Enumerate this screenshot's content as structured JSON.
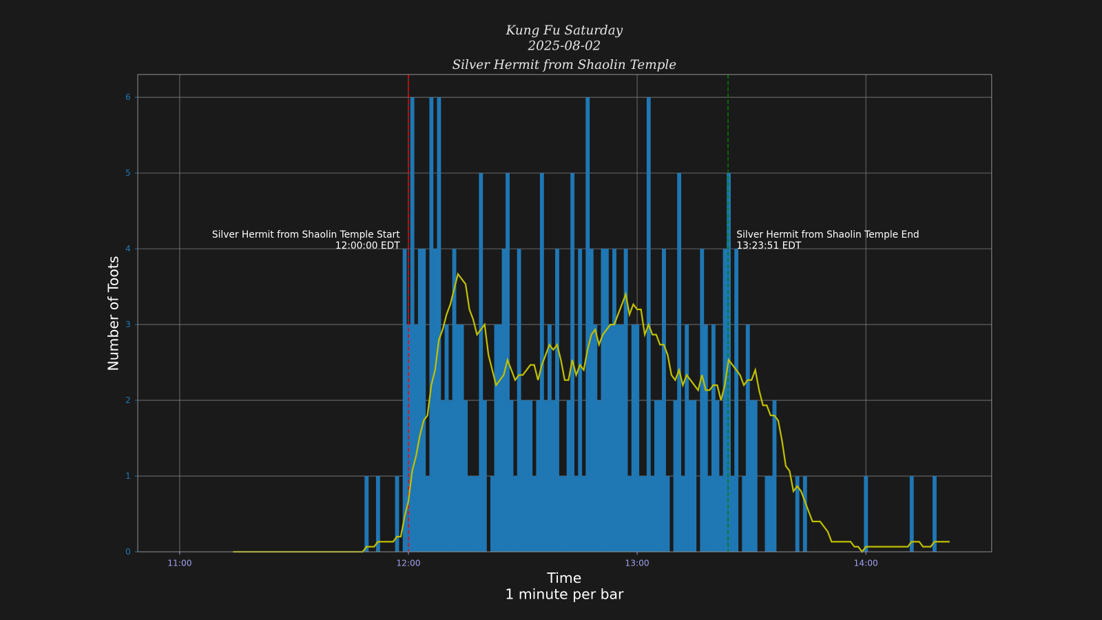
{
  "chart_data": {
    "type": "bar",
    "title_lines": [
      "Kung Fu Saturday",
      "2025-08-02",
      "Silver Hermit from Shaolin Temple"
    ],
    "xlabel": "Time",
    "xlabel_sub": "1 minute per bar",
    "ylabel": "Number of Toots",
    "xlim": [
      "10:49",
      "14:33"
    ],
    "ylim": [
      0,
      6.3
    ],
    "x_ticks": [
      "11:00",
      "12:00",
      "13:00",
      "14:00"
    ],
    "y_ticks": [
      0,
      1,
      2,
      3,
      4,
      5,
      6
    ],
    "grid": true,
    "bar_interval_minutes": 1,
    "bars": [
      [
        "11:49",
        1
      ],
      [
        "11:52",
        1
      ],
      [
        "11:57",
        1
      ],
      [
        "11:59",
        4
      ],
      [
        "12:00",
        3
      ],
      [
        "12:01",
        6
      ],
      [
        "12:02",
        3
      ],
      [
        "12:03",
        4
      ],
      [
        "12:04",
        4
      ],
      [
        "12:05",
        1
      ],
      [
        "12:06",
        6
      ],
      [
        "12:07",
        4
      ],
      [
        "12:08",
        6
      ],
      [
        "12:09",
        2
      ],
      [
        "12:10",
        3
      ],
      [
        "12:11",
        2
      ],
      [
        "12:12",
        4
      ],
      [
        "12:13",
        3
      ],
      [
        "12:14",
        3
      ],
      [
        "12:15",
        2
      ],
      [
        "12:16",
        1
      ],
      [
        "12:17",
        1
      ],
      [
        "12:18",
        1
      ],
      [
        "12:19",
        5
      ],
      [
        "12:20",
        2
      ],
      [
        "12:22",
        1
      ],
      [
        "12:23",
        3
      ],
      [
        "12:24",
        3
      ],
      [
        "12:25",
        4
      ],
      [
        "12:26",
        5
      ],
      [
        "12:27",
        2
      ],
      [
        "12:28",
        1
      ],
      [
        "12:29",
        4
      ],
      [
        "12:30",
        2
      ],
      [
        "12:31",
        2
      ],
      [
        "12:32",
        2
      ],
      [
        "12:33",
        1
      ],
      [
        "12:34",
        2
      ],
      [
        "12:35",
        5
      ],
      [
        "12:36",
        2
      ],
      [
        "12:37",
        3
      ],
      [
        "12:38",
        2
      ],
      [
        "12:39",
        4
      ],
      [
        "12:40",
        1
      ],
      [
        "12:41",
        1
      ],
      [
        "12:42",
        2
      ],
      [
        "12:43",
        5
      ],
      [
        "12:44",
        1
      ],
      [
        "12:45",
        4
      ],
      [
        "12:46",
        1
      ],
      [
        "12:47",
        6
      ],
      [
        "12:48",
        4
      ],
      [
        "12:49",
        3
      ],
      [
        "12:50",
        2
      ],
      [
        "12:51",
        4
      ],
      [
        "12:52",
        4
      ],
      [
        "12:53",
        3
      ],
      [
        "12:54",
        4
      ],
      [
        "12:55",
        3
      ],
      [
        "12:56",
        3
      ],
      [
        "12:57",
        4
      ],
      [
        "12:58",
        1
      ],
      [
        "12:59",
        3
      ],
      [
        "13:00",
        3
      ],
      [
        "13:01",
        1
      ],
      [
        "13:02",
        1
      ],
      [
        "13:03",
        6
      ],
      [
        "13:04",
        1
      ],
      [
        "13:05",
        2
      ],
      [
        "13:06",
        2
      ],
      [
        "13:07",
        4
      ],
      [
        "13:08",
        1
      ],
      [
        "13:10",
        2
      ],
      [
        "13:11",
        5
      ],
      [
        "13:12",
        1
      ],
      [
        "13:13",
        3
      ],
      [
        "13:14",
        2
      ],
      [
        "13:15",
        2
      ],
      [
        "13:17",
        4
      ],
      [
        "13:18",
        3
      ],
      [
        "13:19",
        1
      ],
      [
        "13:20",
        3
      ],
      [
        "13:21",
        2
      ],
      [
        "13:22",
        1
      ],
      [
        "13:23",
        4
      ],
      [
        "13:24",
        5
      ],
      [
        "13:25",
        1
      ],
      [
        "13:26",
        4
      ],
      [
        "13:28",
        1
      ],
      [
        "13:29",
        3
      ],
      [
        "13:30",
        2
      ],
      [
        "13:31",
        2
      ],
      [
        "13:34",
        1
      ],
      [
        "13:35",
        1
      ],
      [
        "13:36",
        2
      ],
      [
        "13:42",
        1
      ],
      [
        "13:44",
        1
      ],
      [
        "14:00",
        1
      ],
      [
        "14:12",
        1
      ],
      [
        "14:18",
        1
      ]
    ],
    "rolling_mean": {
      "window_minutes": 15,
      "start": "11:14",
      "end": "14:22"
    },
    "vlines": [
      {
        "time": "12:00:00",
        "color": "#ff0000",
        "style": "dashed",
        "label": "Silver Hermit from Shaolin Temple Start",
        "time_label": "12:00:00 EDT",
        "align": "right"
      },
      {
        "time": "13:23:51",
        "color": "#008000",
        "style": "dashed",
        "label": "Silver Hermit from Shaolin Temple End",
        "time_label": "13:23:51 EDT",
        "align": "left"
      }
    ],
    "colors": {
      "background": "#1a1a1a",
      "bars": "#1f77b4",
      "line": "#c0c000",
      "grid": "#808080",
      "x_tick_labels": "#a0a0f0",
      "y_tick_labels": "#1f77b4"
    }
  }
}
